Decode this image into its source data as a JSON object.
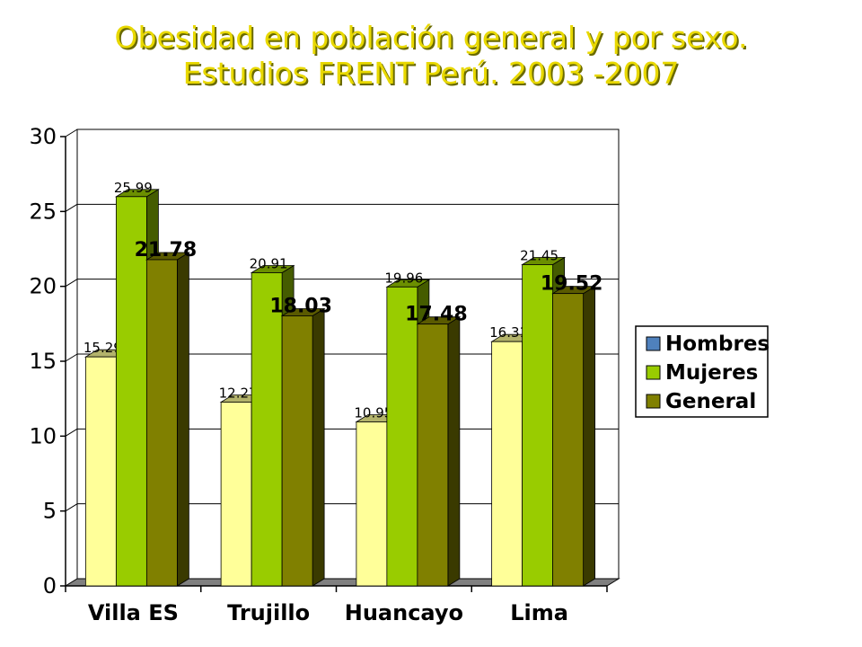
{
  "title": {
    "line1": "Obesidad en población general y por sexo.",
    "line2": "Estudios FRENT Perú. 2003 -2007"
  },
  "colors": {
    "hombres": "#ffff99",
    "mujeres": "#99cc00",
    "general": "#808000",
    "legend_hombres": "#4f81bd",
    "floor": "#808080",
    "title": "#e8d800"
  },
  "chart_data": {
    "type": "bar",
    "categories": [
      "Villa ES",
      "Trujillo",
      "Huancayo",
      "Lima"
    ],
    "series": [
      {
        "name": "Hombres",
        "values": [
          15.29,
          12.27,
          10.95,
          16.31
        ],
        "labels": [
          "15.29",
          "12.27",
          "10.95",
          "16.31"
        ]
      },
      {
        "name": "Mujeres",
        "values": [
          25.99,
          20.91,
          19.96,
          21.45
        ],
        "labels": [
          "25.99",
          "20.91",
          "19.96",
          "21.45"
        ]
      },
      {
        "name": "General",
        "values": [
          21.78,
          18.03,
          17.48,
          19.52
        ],
        "labels": [
          "21.78",
          "18.03",
          "17.48",
          "19.52"
        ]
      }
    ],
    "yticks": [
      "0",
      "5",
      "10",
      "15",
      "20",
      "25",
      "30"
    ],
    "ylim": [
      0,
      30
    ],
    "grid": true,
    "legend_position": "right",
    "bar_style": "3d"
  }
}
